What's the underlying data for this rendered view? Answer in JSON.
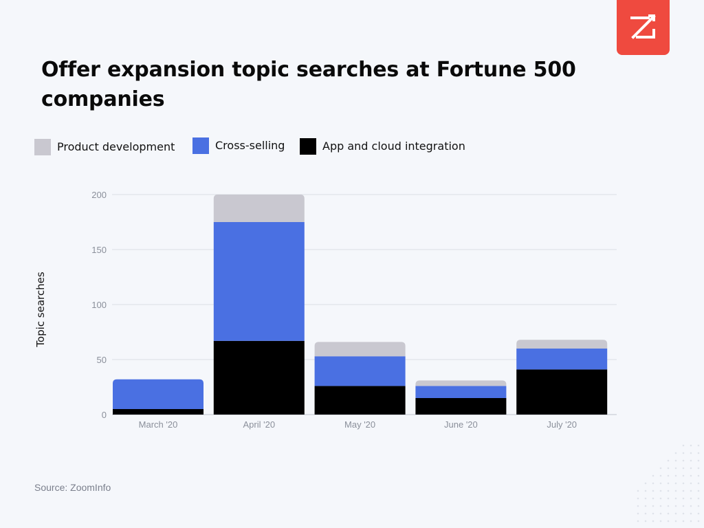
{
  "title": "Offer expansion topic searches at Fortune 500 companies",
  "source": "Source: ZoomInfo",
  "colors": {
    "background": "#f5f7fb",
    "logo_bg": "#ef4a3f",
    "gridline": "#dcdfe6"
  },
  "logo": {
    "icon": "zoominfo-z-logo-icon"
  },
  "chart_data": {
    "type": "bar",
    "stacked": true,
    "title": "Offer expansion topic searches at Fortune 500 companies",
    "xlabel": "",
    "ylabel": "Topic searches",
    "ylim": [
      0,
      200
    ],
    "yticks": [
      "0",
      "50",
      "100",
      "150",
      "200"
    ],
    "grid": true,
    "legend_position": "top-left",
    "categories": [
      "March '20",
      "April '20",
      "May '20",
      "June '20",
      "July '20"
    ],
    "series": [
      {
        "name": "App and cloud integration",
        "color": "#000000",
        "values": [
          5,
          67,
          26,
          15,
          41
        ]
      },
      {
        "name": "Cross-selling",
        "color": "#4a70e2",
        "values": [
          27,
          108,
          27,
          11,
          19
        ]
      },
      {
        "name": "Product development",
        "color": "#c9c8d0",
        "values": [
          0,
          25,
          13,
          5,
          8
        ]
      }
    ],
    "legend_order": [
      "Product development",
      "Cross-selling",
      "App and cloud integration"
    ]
  }
}
